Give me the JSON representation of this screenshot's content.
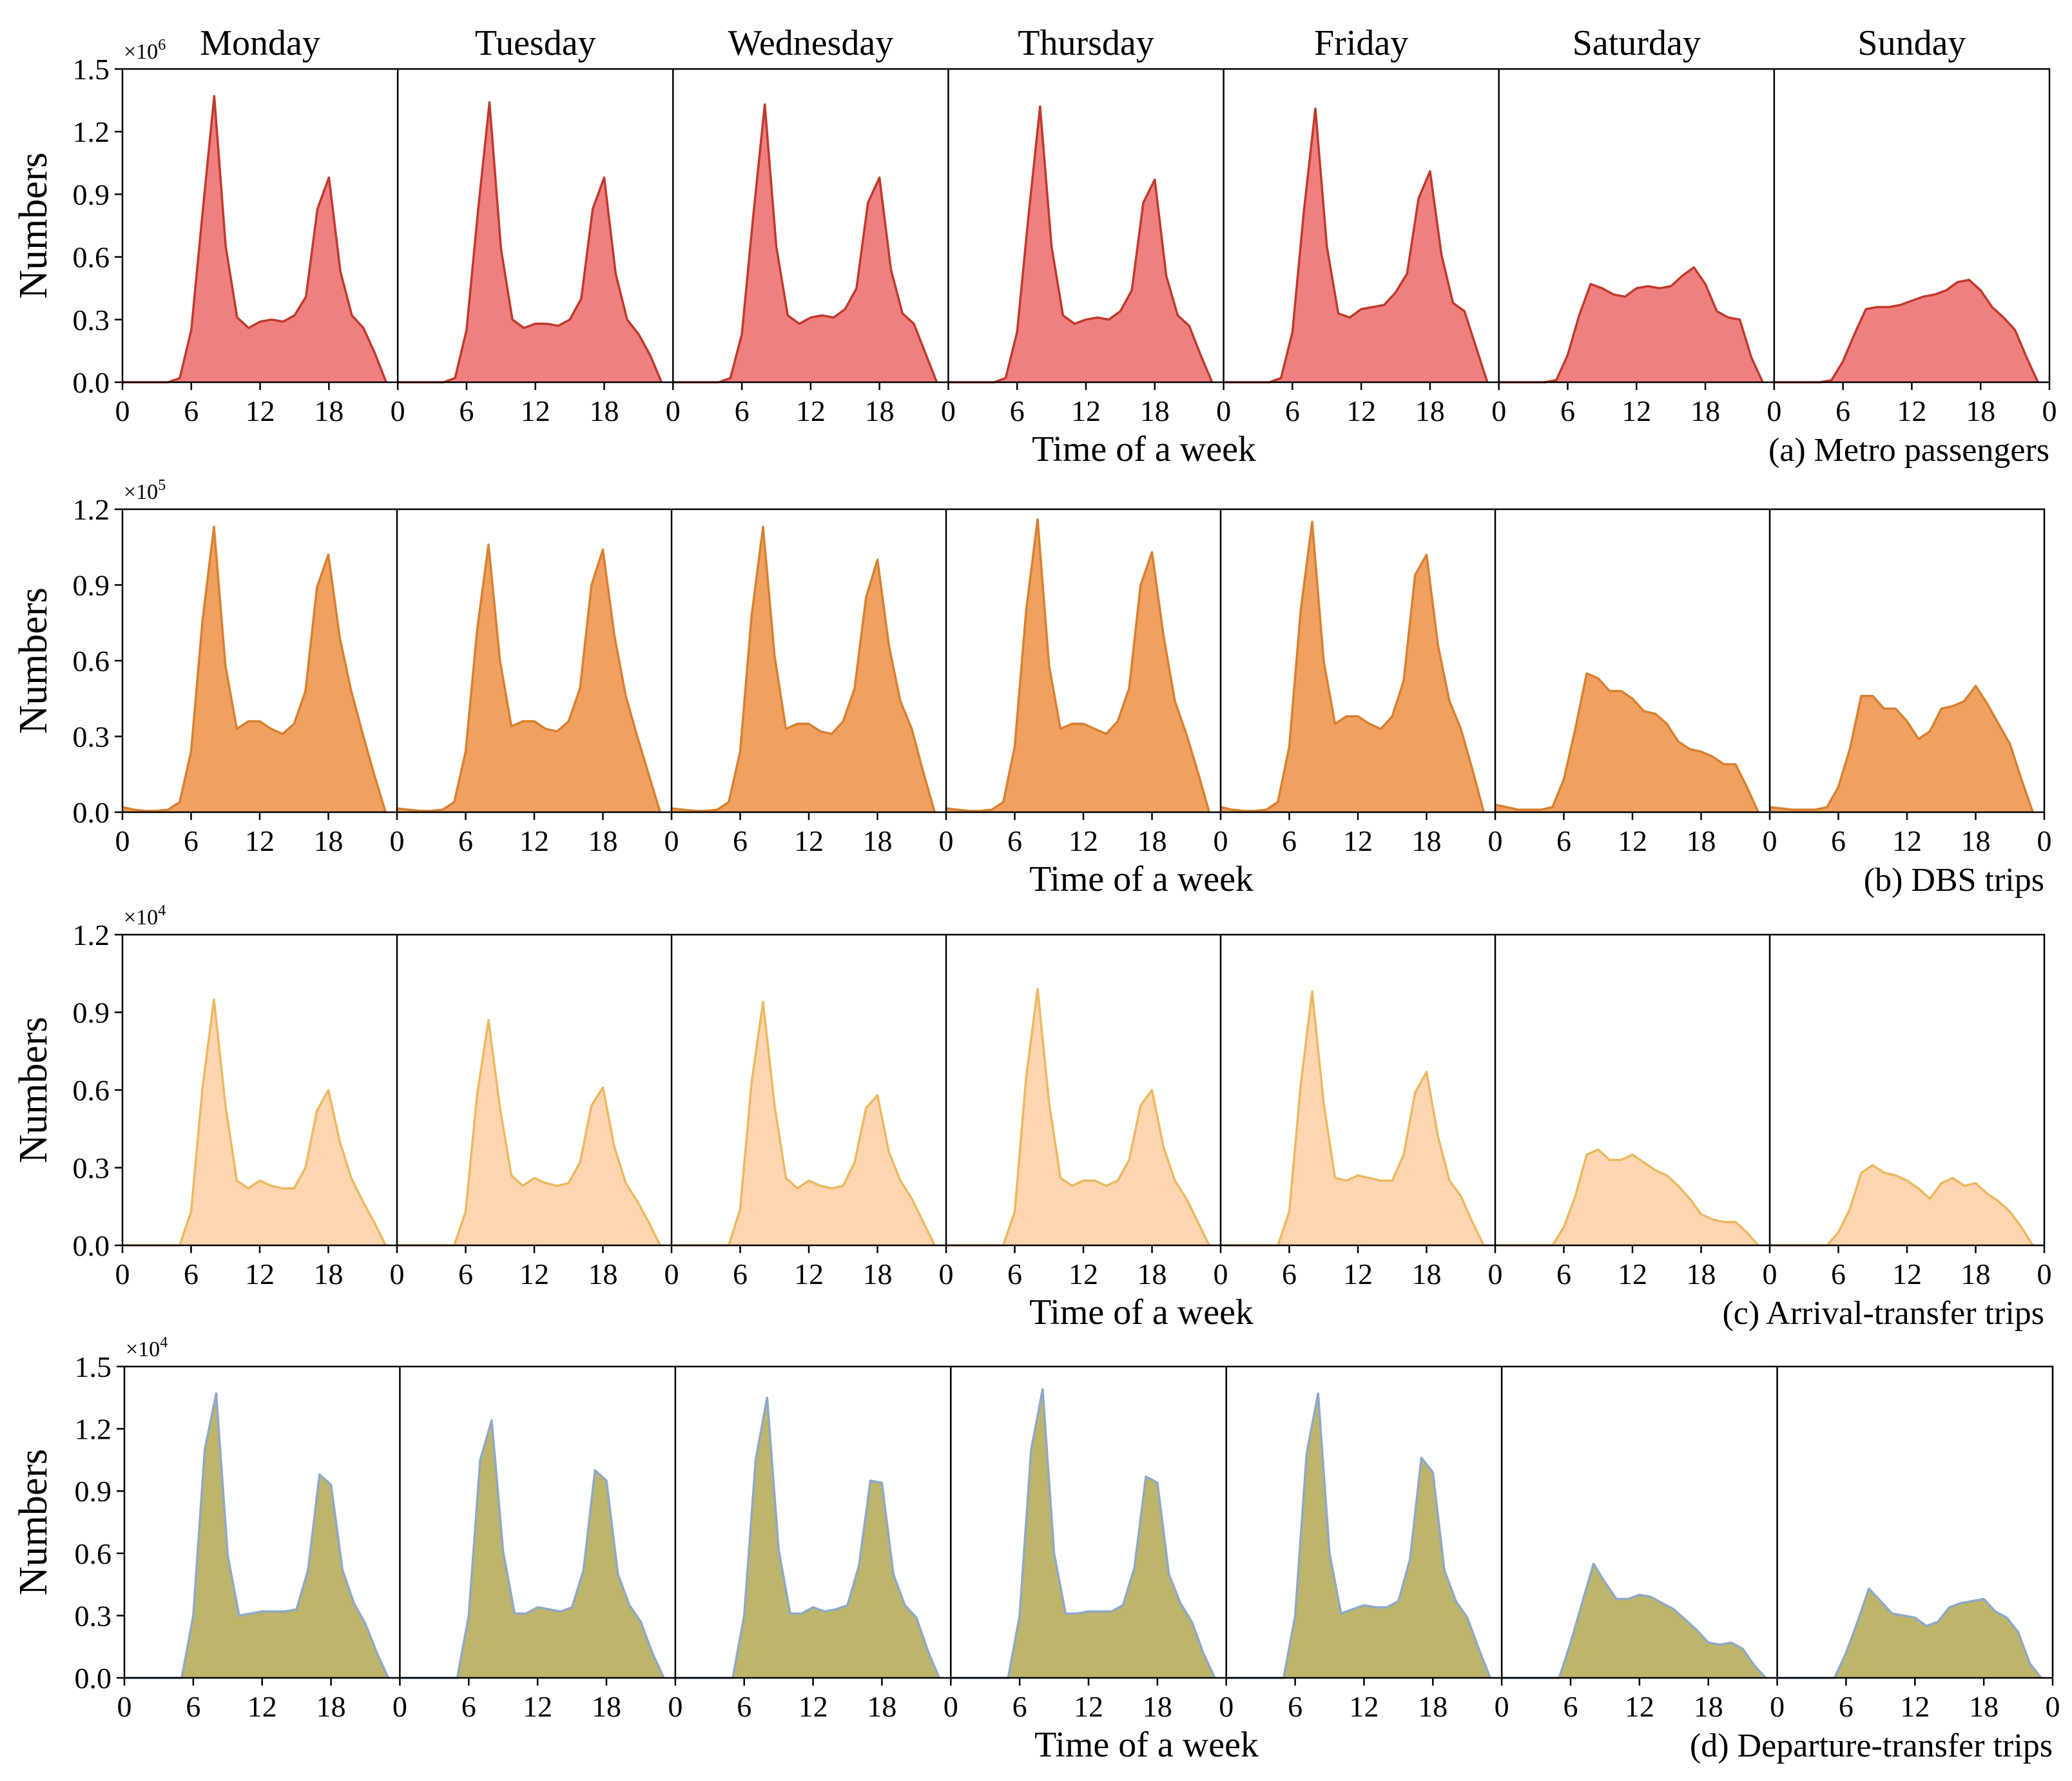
{
  "chart_data": [
    {
      "type": "area",
      "days": [
        "Monday",
        "Tuesday",
        "Wednesday",
        "Thursday",
        "Friday",
        "Saturday",
        "Sunday"
      ],
      "x_ticks": [
        "0",
        "6",
        "12",
        "18"
      ],
      "x_end_tick": "0",
      "xlabel": "Time of a week",
      "ylabel": "Numbers",
      "caption": "(a) Metro passengers",
      "multiplier_base": "×10",
      "multiplier_exp": "6",
      "y_ticks": [
        "0.0",
        "0.3",
        "0.6",
        "0.9",
        "1.2",
        "1.5"
      ],
      "ylim": [
        0,
        1.5
      ],
      "fill": "#f08080",
      "stroke": "#c0392b",
      "show_day_labels": true,
      "series": [
        {
          "name": "Monday",
          "values": [
            0,
            0,
            0,
            0,
            0,
            0.02,
            0.25,
            0.82,
            1.37,
            0.65,
            0.31,
            0.26,
            0.29,
            0.3,
            0.29,
            0.32,
            0.41,
            0.83,
            0.98,
            0.53,
            0.32,
            0.26,
            0.14,
            0
          ]
        },
        {
          "name": "Tuesday",
          "values": [
            0,
            0,
            0,
            0,
            0,
            0.02,
            0.25,
            0.82,
            1.34,
            0.64,
            0.3,
            0.26,
            0.28,
            0.28,
            0.27,
            0.3,
            0.4,
            0.83,
            0.98,
            0.52,
            0.3,
            0.23,
            0.13,
            0
          ]
        },
        {
          "name": "Wednesday",
          "values": [
            0,
            0,
            0,
            0,
            0,
            0.02,
            0.23,
            0.8,
            1.33,
            0.65,
            0.32,
            0.28,
            0.31,
            0.32,
            0.31,
            0.35,
            0.45,
            0.86,
            0.98,
            0.54,
            0.33,
            0.28,
            0.14,
            0
          ]
        },
        {
          "name": "Thursday",
          "values": [
            0,
            0,
            0,
            0,
            0,
            0.02,
            0.24,
            0.8,
            1.32,
            0.65,
            0.32,
            0.28,
            0.3,
            0.31,
            0.3,
            0.34,
            0.44,
            0.86,
            0.97,
            0.51,
            0.32,
            0.27,
            0.13,
            0
          ]
        },
        {
          "name": "Friday",
          "values": [
            0,
            0,
            0,
            0,
            0,
            0.02,
            0.24,
            0.82,
            1.31,
            0.65,
            0.33,
            0.31,
            0.35,
            0.36,
            0.37,
            0.43,
            0.52,
            0.88,
            1.01,
            0.61,
            0.38,
            0.34,
            0.17,
            0
          ]
        },
        {
          "name": "Saturday",
          "values": [
            0,
            0,
            0,
            0,
            0,
            0.01,
            0.13,
            0.32,
            0.47,
            0.45,
            0.42,
            0.41,
            0.45,
            0.46,
            0.45,
            0.46,
            0.51,
            0.55,
            0.47,
            0.34,
            0.31,
            0.3,
            0.12,
            0
          ]
        },
        {
          "name": "Sunday",
          "values": [
            0,
            0,
            0,
            0,
            0,
            0.01,
            0.1,
            0.23,
            0.35,
            0.36,
            0.36,
            0.37,
            0.39,
            0.41,
            0.42,
            0.44,
            0.48,
            0.49,
            0.44,
            0.36,
            0.31,
            0.25,
            0.12,
            0
          ]
        }
      ]
    },
    {
      "type": "area",
      "days": [
        "Monday",
        "Tuesday",
        "Wednesday",
        "Thursday",
        "Friday",
        "Saturday",
        "Sunday"
      ],
      "x_ticks": [
        "0",
        "6",
        "12",
        "18"
      ],
      "x_end_tick": "0",
      "xlabel": "Time of a week",
      "ylabel": "Numbers",
      "caption": "(b) DBS trips",
      "multiplier_base": "×10",
      "multiplier_exp": "5",
      "y_ticks": [
        "0.0",
        "0.3",
        "0.6",
        "0.9",
        "1.2"
      ],
      "ylim": [
        0,
        1.2
      ],
      "fill": "#f0a060",
      "stroke": "#d88030",
      "show_day_labels": false,
      "series": [
        {
          "name": "Monday",
          "values": [
            0.02,
            0.01,
            0.005,
            0.005,
            0.01,
            0.04,
            0.24,
            0.76,
            1.13,
            0.58,
            0.33,
            0.36,
            0.36,
            0.33,
            0.31,
            0.35,
            0.48,
            0.89,
            1.02,
            0.69,
            0.48,
            0.31,
            0.15,
            0
          ]
        },
        {
          "name": "Tuesday",
          "values": [
            0.015,
            0.01,
            0.005,
            0.005,
            0.01,
            0.04,
            0.24,
            0.72,
            1.06,
            0.6,
            0.34,
            0.36,
            0.36,
            0.33,
            0.32,
            0.36,
            0.49,
            0.9,
            1.04,
            0.7,
            0.46,
            0.3,
            0.15,
            0
          ]
        },
        {
          "name": "Wednesday",
          "values": [
            0.015,
            0.01,
            0.005,
            0.005,
            0.01,
            0.04,
            0.24,
            0.78,
            1.13,
            0.62,
            0.33,
            0.35,
            0.35,
            0.32,
            0.31,
            0.36,
            0.49,
            0.85,
            1.0,
            0.66,
            0.44,
            0.33,
            0.16,
            0
          ]
        },
        {
          "name": "Thursday",
          "values": [
            0.015,
            0.01,
            0.005,
            0.005,
            0.01,
            0.04,
            0.26,
            0.8,
            1.16,
            0.58,
            0.33,
            0.35,
            0.35,
            0.33,
            0.31,
            0.36,
            0.49,
            0.9,
            1.03,
            0.7,
            0.44,
            0.31,
            0.16,
            0
          ]
        },
        {
          "name": "Friday",
          "values": [
            0.02,
            0.01,
            0.005,
            0.005,
            0.01,
            0.04,
            0.26,
            0.8,
            1.15,
            0.6,
            0.35,
            0.38,
            0.38,
            0.35,
            0.33,
            0.38,
            0.52,
            0.94,
            1.02,
            0.66,
            0.44,
            0.33,
            0.17,
            0
          ]
        },
        {
          "name": "Saturday",
          "values": [
            0.03,
            0.02,
            0.01,
            0.01,
            0.01,
            0.02,
            0.13,
            0.33,
            0.55,
            0.53,
            0.48,
            0.48,
            0.45,
            0.4,
            0.39,
            0.35,
            0.28,
            0.25,
            0.24,
            0.22,
            0.19,
            0.19,
            0.1,
            0
          ]
        },
        {
          "name": "Sunday",
          "values": [
            0.02,
            0.015,
            0.01,
            0.01,
            0.01,
            0.02,
            0.1,
            0.25,
            0.46,
            0.46,
            0.41,
            0.41,
            0.36,
            0.29,
            0.32,
            0.41,
            0.42,
            0.44,
            0.5,
            0.43,
            0.35,
            0.27,
            0.13,
            0
          ]
        }
      ]
    },
    {
      "type": "area",
      "days": [
        "Monday",
        "Tuesday",
        "Wednesday",
        "Thursday",
        "Friday",
        "Saturday",
        "Sunday"
      ],
      "x_ticks": [
        "0",
        "6",
        "12",
        "18"
      ],
      "x_end_tick": "0",
      "xlabel": "Time of a week",
      "ylabel": "Numbers",
      "caption": "(c) Arrival-transfer trips",
      "multiplier_base": "×10",
      "multiplier_exp": "4",
      "y_ticks": [
        "0.0",
        "0.3",
        "0.6",
        "0.9",
        "1.2"
      ],
      "ylim": [
        0,
        1.2
      ],
      "fill": "#fdd5b0",
      "stroke": "#ecb860",
      "show_day_labels": false,
      "series": [
        {
          "name": "Monday",
          "values": [
            0,
            0,
            0,
            0,
            0,
            0,
            0.13,
            0.61,
            0.95,
            0.54,
            0.25,
            0.22,
            0.25,
            0.23,
            0.22,
            0.22,
            0.3,
            0.52,
            0.6,
            0.4,
            0.26,
            0.17,
            0.09,
            0
          ]
        },
        {
          "name": "Tuesday",
          "values": [
            0,
            0,
            0,
            0,
            0,
            0,
            0.13,
            0.58,
            0.87,
            0.53,
            0.27,
            0.23,
            0.26,
            0.24,
            0.23,
            0.24,
            0.32,
            0.54,
            0.61,
            0.38,
            0.24,
            0.17,
            0.09,
            0
          ]
        },
        {
          "name": "Wednesday",
          "values": [
            0,
            0,
            0,
            0,
            0,
            0,
            0.14,
            0.63,
            0.94,
            0.54,
            0.26,
            0.22,
            0.25,
            0.23,
            0.22,
            0.23,
            0.32,
            0.53,
            0.58,
            0.36,
            0.25,
            0.18,
            0.09,
            0
          ]
        },
        {
          "name": "Thursday",
          "values": [
            0,
            0,
            0,
            0,
            0,
            0,
            0.13,
            0.65,
            0.99,
            0.55,
            0.26,
            0.23,
            0.25,
            0.25,
            0.23,
            0.25,
            0.33,
            0.54,
            0.6,
            0.38,
            0.25,
            0.18,
            0.09,
            0
          ]
        },
        {
          "name": "Friday",
          "values": [
            0,
            0,
            0,
            0,
            0,
            0,
            0.13,
            0.62,
            0.98,
            0.55,
            0.26,
            0.25,
            0.27,
            0.26,
            0.25,
            0.25,
            0.35,
            0.59,
            0.67,
            0.42,
            0.25,
            0.19,
            0.09,
            0
          ]
        },
        {
          "name": "Saturday",
          "values": [
            0,
            0,
            0,
            0,
            0,
            0,
            0.07,
            0.19,
            0.35,
            0.37,
            0.33,
            0.33,
            0.35,
            0.32,
            0.29,
            0.27,
            0.23,
            0.18,
            0.12,
            0.1,
            0.09,
            0.09,
            0.05,
            0
          ]
        },
        {
          "name": "Sunday",
          "values": [
            0,
            0,
            0,
            0,
            0,
            0,
            0.05,
            0.14,
            0.28,
            0.31,
            0.28,
            0.27,
            0.25,
            0.22,
            0.18,
            0.24,
            0.26,
            0.23,
            0.24,
            0.2,
            0.17,
            0.13,
            0.07,
            0
          ]
        }
      ]
    },
    {
      "type": "area",
      "days": [
        "Monday",
        "Tuesday",
        "Wednesday",
        "Thursday",
        "Friday",
        "Saturday",
        "Sunday"
      ],
      "x_ticks": [
        "0",
        "6",
        "12",
        "18"
      ],
      "x_end_tick": "0",
      "xlabel": "Time of a week",
      "ylabel": "Numbers",
      "caption": "(d) Departure-transfer trips",
      "multiplier_base": "×10",
      "multiplier_exp": "4",
      "y_ticks": [
        "0.0",
        "0.3",
        "0.6",
        "0.9",
        "1.2",
        "1.5"
      ],
      "ylim": [
        0,
        1.5
      ],
      "fill": "#bdb56a",
      "stroke": "#8fa8c8",
      "show_day_labels": false,
      "series": [
        {
          "name": "Monday",
          "values": [
            0,
            0,
            0,
            0,
            0,
            0,
            0.3,
            1.1,
            1.37,
            0.59,
            0.3,
            0.31,
            0.32,
            0.32,
            0.32,
            0.33,
            0.52,
            0.98,
            0.93,
            0.52,
            0.36,
            0.26,
            0.12,
            0
          ]
        },
        {
          "name": "Tuesday",
          "values": [
            0,
            0,
            0,
            0,
            0,
            0,
            0.3,
            1.05,
            1.24,
            0.61,
            0.31,
            0.31,
            0.34,
            0.33,
            0.32,
            0.34,
            0.52,
            1.0,
            0.95,
            0.5,
            0.35,
            0.27,
            0.12,
            0
          ]
        },
        {
          "name": "Wednesday",
          "values": [
            0,
            0,
            0,
            0,
            0,
            0,
            0.3,
            1.05,
            1.35,
            0.62,
            0.31,
            0.31,
            0.34,
            0.32,
            0.33,
            0.35,
            0.54,
            0.95,
            0.94,
            0.5,
            0.35,
            0.29,
            0.13,
            0
          ]
        },
        {
          "name": "Thursday",
          "values": [
            0,
            0,
            0,
            0,
            0,
            0,
            0.3,
            1.1,
            1.39,
            0.6,
            0.31,
            0.31,
            0.32,
            0.32,
            0.32,
            0.35,
            0.53,
            0.97,
            0.94,
            0.5,
            0.36,
            0.27,
            0.12,
            0
          ]
        },
        {
          "name": "Friday",
          "values": [
            0,
            0,
            0,
            0,
            0,
            0,
            0.3,
            1.08,
            1.37,
            0.6,
            0.31,
            0.33,
            0.35,
            0.34,
            0.34,
            0.37,
            0.57,
            1.06,
            0.99,
            0.52,
            0.37,
            0.29,
            0.14,
            0
          ]
        },
        {
          "name": "Saturday",
          "values": [
            0,
            0,
            0,
            0,
            0,
            0,
            0.17,
            0.36,
            0.55,
            0.46,
            0.38,
            0.38,
            0.4,
            0.39,
            0.36,
            0.33,
            0.28,
            0.23,
            0.17,
            0.16,
            0.17,
            0.14,
            0.06,
            0
          ]
        },
        {
          "name": "Sunday",
          "values": [
            0,
            0,
            0,
            0,
            0,
            0,
            0.12,
            0.27,
            0.43,
            0.37,
            0.31,
            0.3,
            0.29,
            0.25,
            0.27,
            0.34,
            0.36,
            0.37,
            0.38,
            0.32,
            0.29,
            0.22,
            0.07,
            0
          ]
        }
      ]
    }
  ]
}
